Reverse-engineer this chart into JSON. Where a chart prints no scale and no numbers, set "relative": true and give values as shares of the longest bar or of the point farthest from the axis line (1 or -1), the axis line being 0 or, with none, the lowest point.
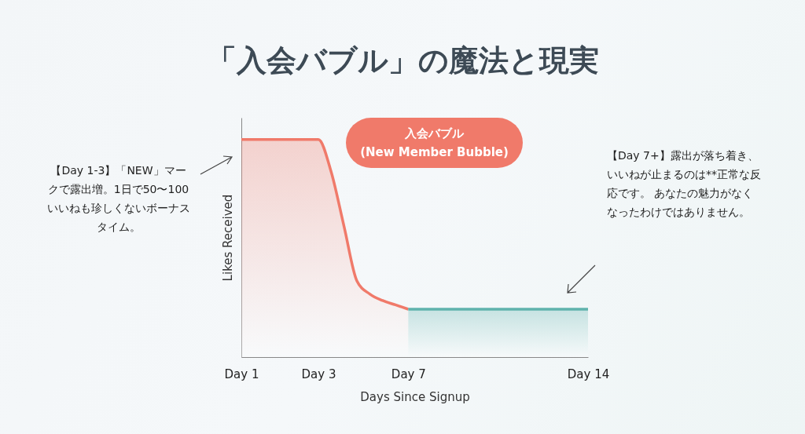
{
  "chart_data": {
    "type": "area",
    "title": "「入会バブル」の魔法と現実",
    "xlabel": "Days Since Signup",
    "ylabel": "Likes Received",
    "relative": true,
    "grid": false,
    "categories": [
      "Day 1",
      null,
      null,
      null,
      null,
      null,
      "Day 3",
      null,
      null,
      null,
      null,
      null,
      null,
      "Day 7",
      null,
      null,
      null,
      null,
      null,
      null,
      null,
      null,
      null,
      null,
      null,
      null,
      null,
      "Day 14"
    ],
    "series": [
      {
        "color": "#f07a6a",
        "values": [
          1,
          1,
          1,
          1,
          1,
          1,
          1,
          0.85,
          0.6,
          0.35,
          0.29,
          0.26,
          0.24,
          0.22,
          null,
          null,
          null,
          null,
          null,
          null,
          null,
          null,
          null,
          null,
          null,
          null,
          null,
          null
        ]
      },
      {
        "color": "#5fb3ad",
        "values": [
          null,
          null,
          null,
          null,
          null,
          null,
          null,
          null,
          null,
          null,
          null,
          null,
          null,
          0.22,
          0.22,
          0.22,
          0.22,
          0.22,
          0.22,
          0.22,
          0.22,
          0.22,
          0.22,
          0.22,
          0.22,
          0.22,
          0.22,
          0.22
        ]
      }
    ],
    "annotations": [
      "入会バブル\n(New Member Bubble)",
      "【Day 1-3】「NEW」マークで露出増。1日で50〜100いいねも珍しくないボーナスタイム。",
      "【Day 7+】露出が落ち着き、いいねが止まるのは**正常な反応です。 あなたの魅力がなくなったわけではありません。"
    ]
  }
}
